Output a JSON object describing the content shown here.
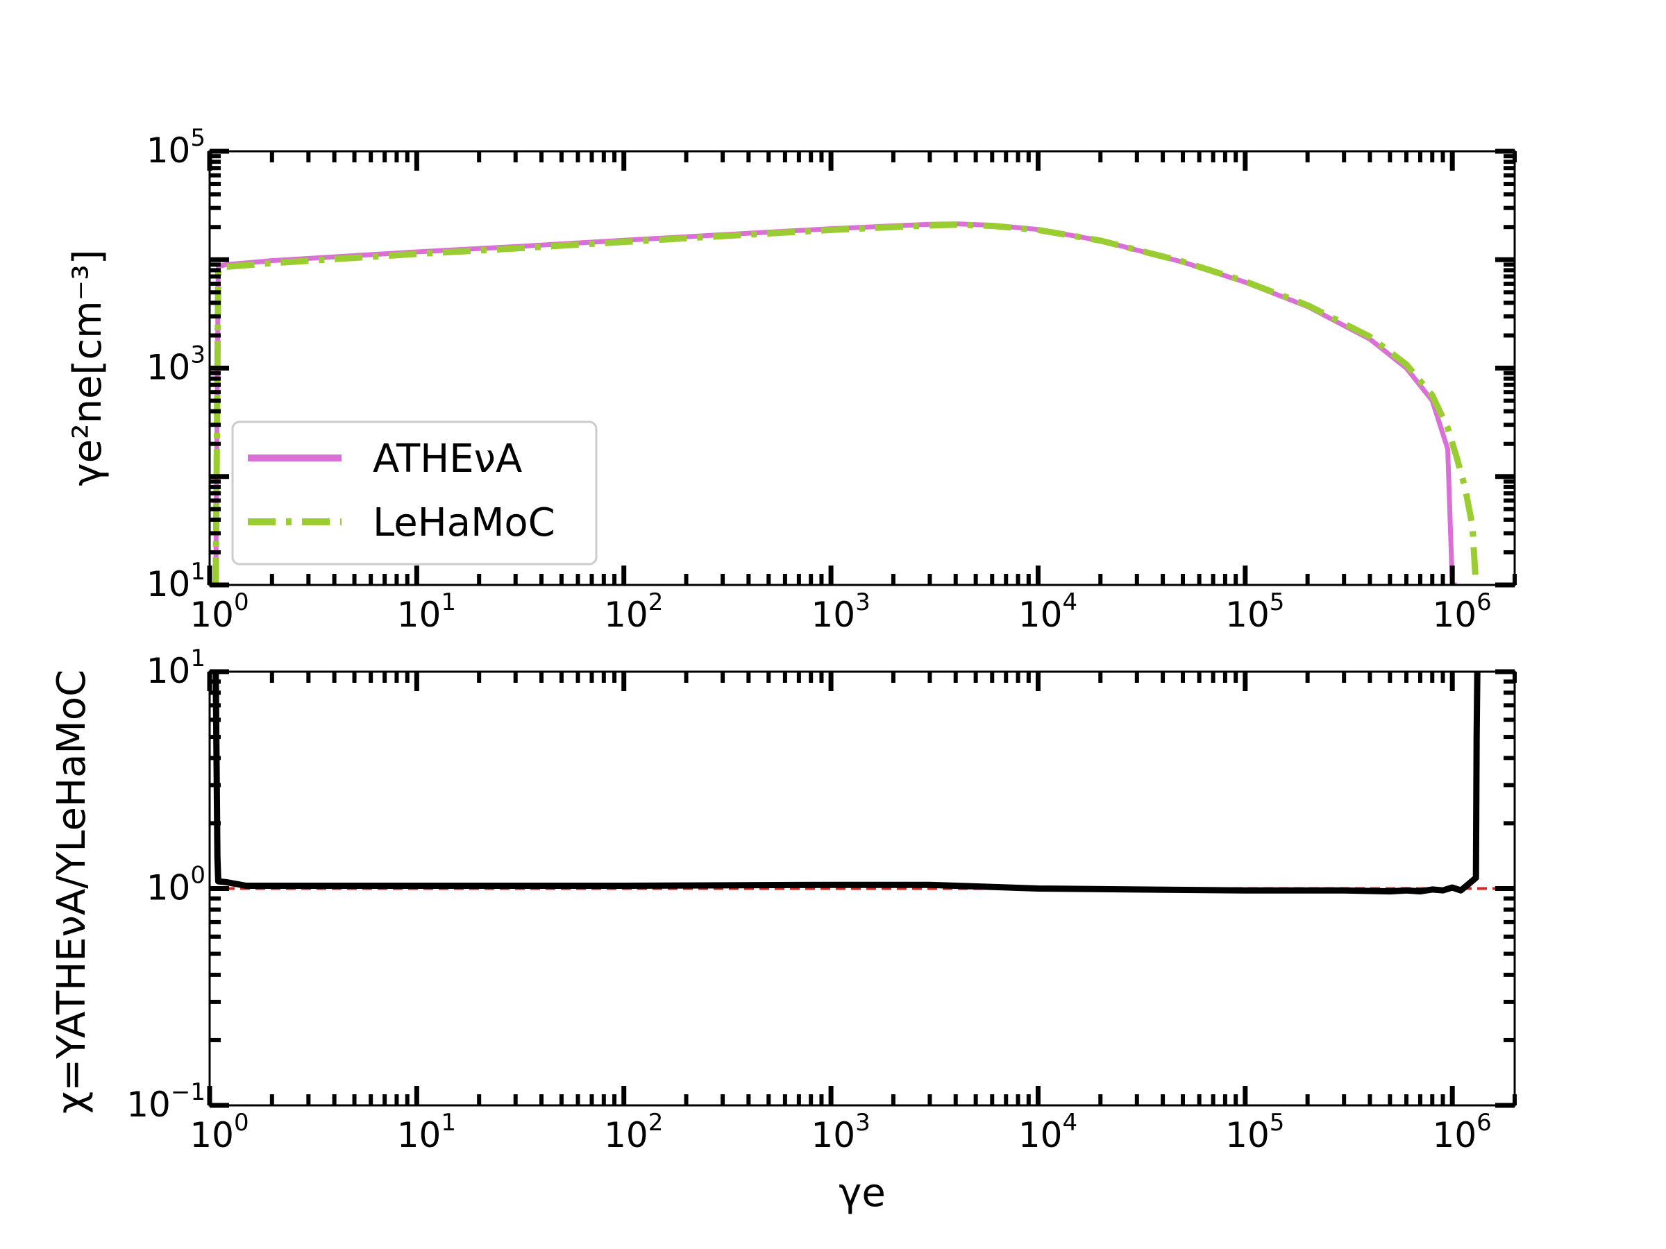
{
  "chart_data": [
    {
      "type": "line",
      "panel": "top",
      "ylabel": "γe²ne[cm⁻³]",
      "xlabel": "",
      "xscale": "log",
      "yscale": "log",
      "xlim": [
        1,
        2000000
      ],
      "ylim": [
        10,
        100000
      ],
      "x_ticks": [
        {
          "base": "10",
          "exp": "0",
          "value": 1
        },
        {
          "base": "10",
          "exp": "1",
          "value": 10
        },
        {
          "base": "10",
          "exp": "2",
          "value": 100
        },
        {
          "base": "10",
          "exp": "3",
          "value": 1000
        },
        {
          "base": "10",
          "exp": "4",
          "value": 10000
        },
        {
          "base": "10",
          "exp": "5",
          "value": 100000
        },
        {
          "base": "10",
          "exp": "6",
          "value": 1000000
        }
      ],
      "y_ticks": [
        {
          "base": "10",
          "exp": "1",
          "value": 10
        },
        {
          "base": "10",
          "exp": "3",
          "value": 1000
        },
        {
          "base": "10",
          "exp": "5",
          "value": 100000
        }
      ],
      "legend": {
        "placement": "lower-left"
      },
      "series": [
        {
          "name": "ATHEνA",
          "color": "#da70d6",
          "style": "solid",
          "x": [
            1.07,
            1.1,
            1.2,
            2,
            5,
            10,
            30,
            100,
            300,
            1000,
            2000,
            3000,
            4000,
            6000,
            10000,
            20000,
            50000,
            100000,
            200000,
            400000,
            600000,
            800000,
            950000,
            1000000,
            1050000
          ],
          "y": [
            10,
            8700,
            9000,
            9800,
            10900,
            11800,
            13200,
            15100,
            17000,
            19300,
            20500,
            21200,
            21400,
            20800,
            19000,
            15000,
            9500,
            6200,
            3700,
            1850,
            1000,
            500,
            180,
            10,
            10
          ]
        },
        {
          "name": "LeHaMoC",
          "color": "#9acd32",
          "style": "dashdot",
          "x": [
            1.07,
            1.1,
            1.2,
            2,
            5,
            10,
            30,
            100,
            300,
            1000,
            2000,
            3000,
            4000,
            6000,
            10000,
            20000,
            50000,
            100000,
            200000,
            400000,
            600000,
            800000,
            950000,
            1050000,
            1150000,
            1250000,
            1300000
          ],
          "y": [
            10,
            8200,
            8600,
            9300,
            10400,
            11300,
            12700,
            14600,
            16500,
            18800,
            20000,
            20700,
            21000,
            20500,
            18800,
            15000,
            9600,
            6300,
            3800,
            1950,
            1080,
            560,
            280,
            150,
            80,
            35,
            10
          ]
        }
      ]
    },
    {
      "type": "line",
      "panel": "bottom",
      "ylabel": "χ=YATHEνA/YLeHaMoC",
      "xlabel": "γe",
      "xscale": "log",
      "yscale": "log",
      "xlim": [
        1,
        2000000
      ],
      "ylim": [
        0.1,
        10
      ],
      "x_ticks": [
        {
          "base": "10",
          "exp": "0",
          "value": 1
        },
        {
          "base": "10",
          "exp": "1",
          "value": 10
        },
        {
          "base": "10",
          "exp": "2",
          "value": 100
        },
        {
          "base": "10",
          "exp": "3",
          "value": 1000
        },
        {
          "base": "10",
          "exp": "4",
          "value": 10000
        },
        {
          "base": "10",
          "exp": "5",
          "value": 100000
        },
        {
          "base": "10",
          "exp": "6",
          "value": 1000000
        }
      ],
      "y_ticks": [
        {
          "base": "10",
          "exp": "−1",
          "value": 0.1
        },
        {
          "base": "10",
          "exp": "0",
          "value": 1
        },
        {
          "base": "10",
          "exp": "1",
          "value": 10
        }
      ],
      "reference_line": {
        "y": 1,
        "color": "#d62728",
        "style": "dashed"
      },
      "series": [
        {
          "color": "#000000",
          "style": "solid",
          "x": [
            1.07,
            1.09,
            1.1,
            1.2,
            1.5,
            2,
            5,
            10,
            100,
            1000,
            3000,
            10000,
            30000,
            100000,
            300000,
            500000,
            600000,
            700000,
            800000,
            900000,
            1000000,
            1100000,
            1200000,
            1300000,
            1310000,
            1320000
          ],
          "y": [
            10,
            1.4,
            1.08,
            1.07,
            1.03,
            1.03,
            1.03,
            1.03,
            1.03,
            1.04,
            1.04,
            1.0,
            0.99,
            0.98,
            0.98,
            0.97,
            0.98,
            0.97,
            0.99,
            0.98,
            1.01,
            0.98,
            1.05,
            1.12,
            5,
            10
          ]
        }
      ]
    }
  ]
}
